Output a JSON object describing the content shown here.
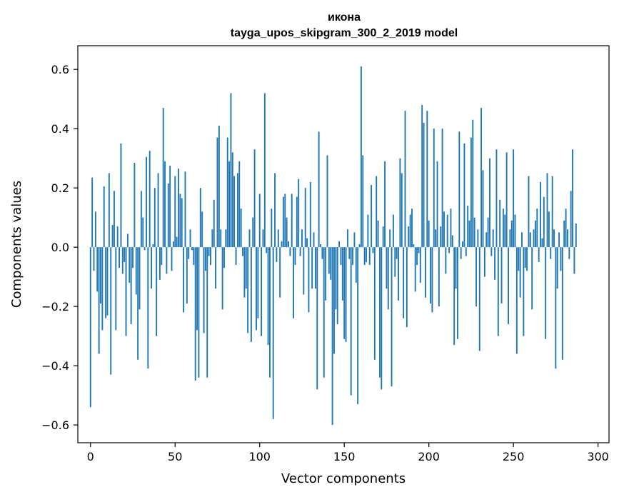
{
  "chart_data": {
    "type": "bar",
    "title": "икона",
    "subtitle": "tayga_upos_skipgram_300_2_2019 model",
    "xlabel": "Vector components",
    "ylabel": "Components values",
    "xlim": [
      -7.5,
      306.5
    ],
    "ylim": [
      -0.66,
      0.68
    ],
    "xticks": [
      0,
      50,
      100,
      150,
      200,
      250,
      300
    ],
    "xtick_labels": [
      "0",
      "50",
      "100",
      "150",
      "200",
      "250",
      "300"
    ],
    "yticks": [
      -0.6,
      -0.4,
      -0.2,
      0.0,
      0.2,
      0.4,
      0.6
    ],
    "ytick_labels": [
      "−0.6",
      "−0.4",
      "−0.2",
      "0.0",
      "0.2",
      "0.4",
      "0.6"
    ],
    "color": "#1f77b4",
    "grid": false,
    "values": [
      -0.54,
      0.235,
      -0.08,
      0.12,
      -0.15,
      -0.36,
      -0.19,
      -0.28,
      0.205,
      -0.24,
      -0.23,
      0.25,
      -0.43,
      0.075,
      0.19,
      -0.28,
      0.07,
      -0.07,
      0.35,
      -0.09,
      -0.05,
      -0.3,
      0.045,
      -0.12,
      -0.26,
      -0.07,
      0.285,
      -0.16,
      -0.38,
      -0.21,
      0.19,
      0.1,
      -0.01,
      0.305,
      -0.41,
      0.325,
      -0.14,
      0.01,
      0.2,
      -0.3,
      0.25,
      -0.11,
      -0.06,
      0.47,
      0.29,
      -0.09,
      0.215,
      0.275,
      -0.08,
      0.02,
      0.24,
      0.035,
      0.265,
      0.18,
      0.165,
      -0.22,
      0.255,
      -0.19,
      -0.04,
      0.06,
      -0.01,
      -0.06,
      -0.45,
      -0.28,
      -0.44,
      0.2,
      0.12,
      -0.29,
      -0.08,
      -0.44,
      -0.03,
      -0.06,
      0.06,
      0.16,
      -0.14,
      0.37,
      0.41,
      0.06,
      -0.21,
      -0.07,
      0.06,
      0.37,
      0.29,
      0.52,
      0.32,
      0.24,
      -0.06,
      0.25,
      0.29,
      0.13,
      -0.03,
      -0.17,
      -0.14,
      -0.29,
      0.06,
      -0.32,
      0.1,
      0.33,
      -0.28,
      -0.24,
      0.18,
      -0.3,
      0.06,
      0.52,
      -0.02,
      -0.33,
      -0.44,
      0.13,
      -0.58,
      0.25,
      -0.05,
      0.06,
      -0.17,
      0.02,
      0.17,
      0.18,
      0.1,
      0.02,
      -0.03,
      0.18,
      -0.24,
      -0.06,
      0.17,
      0.23,
      -0.03,
      0.06,
      -0.16,
      0.2,
      0.03,
      -0.22,
      0.22,
      -0.14,
      0.05,
      -0.14,
      -0.48,
      0.39,
      0.01,
      -0.04,
      -0.44,
      -0.18,
      0.31,
      -0.09,
      -0.11,
      -0.6,
      -0.36,
      -0.21,
      -0.26,
      0.02,
      -0.06,
      -0.18,
      -0.31,
      -0.32,
      0.06,
      -0.04,
      -0.5,
      -0.06,
      0.05,
      -0.12,
      -0.53,
      0.01,
      0.61,
      0.31,
      -0.06,
      -0.05,
      0.11,
      -0.06,
      0.21,
      -0.02,
      -0.38,
      0.24,
      0.09,
      -0.44,
      -0.48,
      0.07,
      0.29,
      -0.14,
      -0.21,
      0.06,
      -0.47,
      0.11,
      -0.1,
      -0.04,
      -0.18,
      0.3,
      0.25,
      -0.24,
      0.46,
      -0.27,
      0.07,
      0.11,
      0.13,
      0.01,
      -0.15,
      -0.06,
      -0.02,
      -0.12,
      0.48,
      0.42,
      -0.17,
      0.46,
      0.09,
      -0.19,
      -0.22,
      0.4,
      0.06,
      0.29,
      -0.2,
      0.07,
      0.4,
      0.12,
      -0.09,
      0.11,
      -0.02,
      0.13,
      0.04,
      -0.33,
      -0.14,
      -0.31,
      0.39,
      -0.04,
      0.02,
      0.35,
      -0.03,
      0.14,
      0.09,
      0.37,
      0.43,
      0.1,
      -0.2,
      0.06,
      -0.35,
      0.47,
      0.26,
      -0.1,
      0.05,
      0.1,
      0.3,
      -0.03,
      0.06,
      -0.11,
      0.33,
      -0.3,
      0.16,
      -0.19,
      0.13,
      0.11,
      0.32,
      -0.26,
      0.06,
      0.09,
      0.33,
      0.11,
      -0.36,
      -0.08,
      -0.17,
      0.05,
      -0.3,
      -0.07,
      -0.08,
      0.24,
      0.05,
      -0.21,
      0.06,
      0.09,
      0.13,
      -0.05,
      0.22,
      0.03,
      0.17,
      -0.31,
      0.25,
      0.12,
      -0.04,
      0.24,
      0.06,
      -0.41,
      -0.14,
      0.05,
      -0.08,
      -0.38,
      0.09,
      0.13,
      0.06,
      -0.04,
      0.19,
      0.33,
      -0.09,
      0.08
    ]
  }
}
